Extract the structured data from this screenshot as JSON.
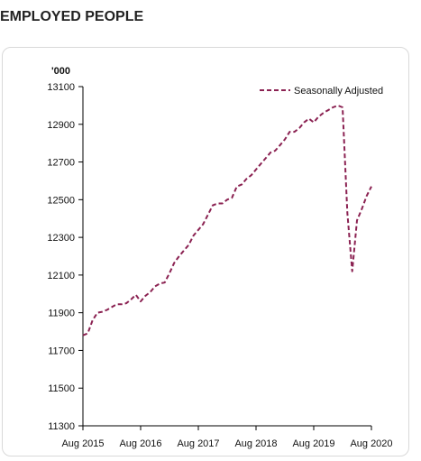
{
  "page": {
    "heading": "EMPLOYED PEOPLE"
  },
  "colors": {
    "series": "#8b2252",
    "axis": "#000000",
    "panel_border": "#d9d9d9"
  },
  "chart_data": {
    "type": "line",
    "title": "",
    "xlabel": "",
    "ylabel": "'000",
    "ylim": [
      11300,
      13100
    ],
    "yticks": [
      11300,
      11500,
      11700,
      11900,
      12100,
      12300,
      12500,
      12700,
      12900,
      13100
    ],
    "ytick_labels": [
      "11300",
      "11500",
      "11700",
      "11900",
      "12100",
      "12300",
      "12500",
      "12700",
      "12900",
      "13100"
    ],
    "xlim": [
      "2015-08",
      "2020-08"
    ],
    "xticks": [
      "2015-08",
      "2016-08",
      "2017-08",
      "2018-08",
      "2019-08",
      "2020-08"
    ],
    "xtick_labels": [
      "Aug 2015",
      "Aug 2016",
      "Aug 2017",
      "Aug 2018",
      "Aug 2019",
      "Aug 2020"
    ],
    "grid": false,
    "legend_position": "top-right",
    "series": [
      {
        "name": "Seasonally Adjusted",
        "style": "dashed",
        "x": [
          "2015-08",
          "2015-09",
          "2015-10",
          "2015-11",
          "2015-12",
          "2016-01",
          "2016-02",
          "2016-03",
          "2016-04",
          "2016-05",
          "2016-06",
          "2016-07",
          "2016-08",
          "2016-09",
          "2016-10",
          "2016-11",
          "2016-12",
          "2017-01",
          "2017-02",
          "2017-03",
          "2017-04",
          "2017-05",
          "2017-06",
          "2017-07",
          "2017-08",
          "2017-09",
          "2017-10",
          "2017-11",
          "2017-12",
          "2018-01",
          "2018-02",
          "2018-03",
          "2018-04",
          "2018-05",
          "2018-06",
          "2018-07",
          "2018-08",
          "2018-09",
          "2018-10",
          "2018-11",
          "2018-12",
          "2019-01",
          "2019-02",
          "2019-03",
          "2019-04",
          "2019-05",
          "2019-06",
          "2019-07",
          "2019-08",
          "2019-09",
          "2019-10",
          "2019-11",
          "2019-12",
          "2020-01",
          "2020-02",
          "2020-03",
          "2020-04",
          "2020-05",
          "2020-06",
          "2020-07",
          "2020-08"
        ],
        "values": [
          11780,
          11790,
          11860,
          11900,
          11905,
          11915,
          11930,
          11945,
          11945,
          11950,
          11970,
          11995,
          11960,
          11990,
          12010,
          12040,
          12055,
          12060,
          12110,
          12165,
          12200,
          12230,
          12260,
          12310,
          12340,
          12370,
          12420,
          12470,
          12480,
          12480,
          12500,
          12510,
          12570,
          12580,
          12610,
          12630,
          12660,
          12690,
          12720,
          12750,
          12760,
          12790,
          12820,
          12860,
          12860,
          12880,
          12910,
          12930,
          12910,
          12940,
          12960,
          12975,
          12990,
          13000,
          12990,
          12430,
          12120,
          12390,
          12450,
          12520,
          12570
        ]
      }
    ]
  }
}
